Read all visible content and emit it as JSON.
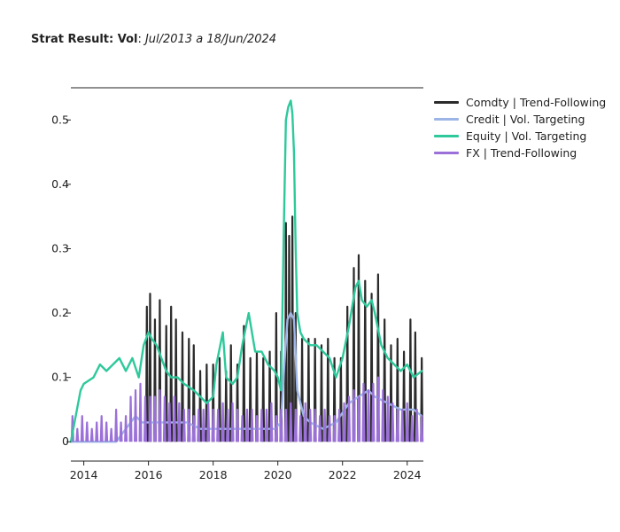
{
  "title": {
    "bold_part": "Strat Result: Vol",
    "separator": ": ",
    "italic_part": "Jul/2013 a 18/Jun/2024"
  },
  "chart_data": {
    "type": "line",
    "xlim": [
      2013.6,
      2024.5
    ],
    "ylim": [
      -0.03,
      0.55
    ],
    "xticks": [
      2014,
      2016,
      2018,
      2020,
      2022,
      2024
    ],
    "xtick_labels": [
      "2014",
      "2016",
      "2018",
      "2020",
      "2022",
      "2024"
    ],
    "yticks": [
      0,
      0.1,
      0.2,
      0.3,
      0.4,
      0.5
    ],
    "ytick_labels": [
      "0",
      "0.1",
      "0.2",
      "0.3",
      "0.4",
      "0.5"
    ],
    "grid": false,
    "legend": "top-right",
    "series": [
      {
        "name": "Comdty | Trend-Following",
        "color": "#2b2b2b",
        "style": "spikes",
        "spike_width": 0.045,
        "x": [
          2015.95,
          2016.05,
          2016.2,
          2016.35,
          2016.55,
          2016.7,
          2016.85,
          2017.05,
          2017.25,
          2017.4,
          2017.6,
          2017.8,
          2018.0,
          2018.2,
          2018.4,
          2018.55,
          2018.75,
          2018.95,
          2019.15,
          2019.35,
          2019.55,
          2019.75,
          2019.95,
          2020.1,
          2020.25,
          2020.35,
          2020.45,
          2020.55,
          2020.75,
          2020.95,
          2021.15,
          2021.35,
          2021.55,
          2021.75,
          2021.95,
          2022.15,
          2022.35,
          2022.5,
          2022.7,
          2022.9,
          2023.1,
          2023.3,
          2023.5,
          2023.7,
          2023.9,
          2024.1,
          2024.25,
          2024.45
        ],
        "values": [
          0.21,
          0.23,
          0.19,
          0.22,
          0.18,
          0.21,
          0.19,
          0.17,
          0.16,
          0.15,
          0.11,
          0.12,
          0.12,
          0.13,
          0.11,
          0.15,
          0.12,
          0.18,
          0.13,
          0.14,
          0.13,
          0.14,
          0.2,
          0.14,
          0.34,
          0.32,
          0.35,
          0.2,
          0.16,
          0.16,
          0.16,
          0.15,
          0.16,
          0.13,
          0.13,
          0.21,
          0.27,
          0.29,
          0.25,
          0.23,
          0.26,
          0.19,
          0.15,
          0.16,
          0.14,
          0.19,
          0.17,
          0.13
        ]
      },
      {
        "name": "Credit | Vol. Targeting",
        "color": "#9cb5e6",
        "style": "line",
        "x": [
          2013.6,
          2014.0,
          2014.5,
          2015.0,
          2015.3,
          2015.6,
          2015.8,
          2016.0,
          2016.4,
          2016.8,
          2017.2,
          2017.6,
          2018.0,
          2018.5,
          2019.0,
          2019.5,
          2019.9,
          2020.1,
          2020.2,
          2020.3,
          2020.4,
          2020.5,
          2020.6,
          2020.8,
          2021.0,
          2021.4,
          2021.8,
          2022.2,
          2022.5,
          2022.8,
          2023.0,
          2023.4,
          2023.8,
          2024.2,
          2024.45
        ],
        "values": [
          0.0,
          0.0,
          0.0,
          0.0,
          0.02,
          0.04,
          0.03,
          0.03,
          0.03,
          0.03,
          0.03,
          0.02,
          0.02,
          0.02,
          0.02,
          0.02,
          0.02,
          0.03,
          0.12,
          0.19,
          0.2,
          0.19,
          0.08,
          0.04,
          0.03,
          0.02,
          0.03,
          0.06,
          0.07,
          0.08,
          0.07,
          0.06,
          0.05,
          0.05,
          0.04
        ]
      },
      {
        "name": "Equity | Vol. Targeting",
        "color": "#2ec99b",
        "style": "line",
        "x": [
          2013.6,
          2013.9,
          2014.0,
          2014.3,
          2014.5,
          2014.7,
          2014.9,
          2015.1,
          2015.3,
          2015.5,
          2015.7,
          2015.85,
          2016.0,
          2016.1,
          2016.25,
          2016.4,
          2016.55,
          2016.7,
          2016.9,
          2017.1,
          2017.4,
          2017.6,
          2017.8,
          2018.0,
          2018.1,
          2018.3,
          2018.4,
          2018.6,
          2018.75,
          2018.9,
          2019.1,
          2019.3,
          2019.5,
          2019.7,
          2019.9,
          2020.0,
          2020.1,
          2020.18,
          2020.25,
          2020.32,
          2020.4,
          2020.45,
          2020.5,
          2020.55,
          2020.6,
          2020.7,
          2020.8,
          2021.0,
          2021.2,
          2021.4,
          2021.6,
          2021.8,
          2022.0,
          2022.2,
          2022.4,
          2022.5,
          2022.6,
          2022.75,
          2022.9,
          2023.0,
          2023.2,
          2023.4,
          2023.6,
          2023.8,
          2024.0,
          2024.2,
          2024.45
        ],
        "values": [
          0.0,
          0.08,
          0.09,
          0.1,
          0.12,
          0.11,
          0.12,
          0.13,
          0.11,
          0.13,
          0.1,
          0.15,
          0.17,
          0.16,
          0.15,
          0.13,
          0.11,
          0.1,
          0.1,
          0.09,
          0.08,
          0.07,
          0.06,
          0.07,
          0.12,
          0.17,
          0.1,
          0.09,
          0.1,
          0.15,
          0.2,
          0.14,
          0.14,
          0.12,
          0.11,
          0.1,
          0.08,
          0.32,
          0.5,
          0.52,
          0.53,
          0.51,
          0.45,
          0.3,
          0.2,
          0.17,
          0.16,
          0.15,
          0.15,
          0.14,
          0.13,
          0.1,
          0.13,
          0.18,
          0.24,
          0.25,
          0.22,
          0.21,
          0.22,
          0.2,
          0.15,
          0.13,
          0.12,
          0.11,
          0.12,
          0.1,
          0.11
        ]
      },
      {
        "name": "FX | Trend-Following",
        "color": "#9b70d8",
        "style": "spikes",
        "spike_width": 0.05,
        "x": [
          2013.65,
          2013.8,
          2013.95,
          2014.1,
          2014.25,
          2014.4,
          2014.55,
          2014.7,
          2014.85,
          2015.0,
          2015.15,
          2015.3,
          2015.45,
          2015.6,
          2015.75,
          2015.9,
          2016.05,
          2016.2,
          2016.35,
          2016.5,
          2016.65,
          2016.8,
          2016.95,
          2017.1,
          2017.25,
          2017.4,
          2017.55,
          2017.7,
          2017.85,
          2018.0,
          2018.15,
          2018.3,
          2018.45,
          2018.6,
          2018.75,
          2018.9,
          2019.05,
          2019.2,
          2019.35,
          2019.5,
          2019.65,
          2019.8,
          2019.95,
          2020.1,
          2020.25,
          2020.4,
          2020.55,
          2020.7,
          2020.85,
          2021.0,
          2021.15,
          2021.3,
          2021.45,
          2021.6,
          2021.75,
          2021.9,
          2022.05,
          2022.2,
          2022.35,
          2022.5,
          2022.65,
          2022.8,
          2022.95,
          2023.1,
          2023.25,
          2023.4,
          2023.55,
          2023.7,
          2023.85,
          2024.0,
          2024.15,
          2024.3,
          2024.45
        ],
        "values": [
          0.04,
          0.02,
          0.04,
          0.03,
          0.02,
          0.03,
          0.04,
          0.03,
          0.02,
          0.05,
          0.03,
          0.04,
          0.07,
          0.08,
          0.09,
          0.07,
          0.07,
          0.07,
          0.08,
          0.07,
          0.06,
          0.07,
          0.06,
          0.05,
          0.05,
          0.04,
          0.05,
          0.05,
          0.06,
          0.05,
          0.05,
          0.06,
          0.05,
          0.06,
          0.05,
          0.04,
          0.05,
          0.05,
          0.04,
          0.05,
          0.05,
          0.06,
          0.04,
          0.05,
          0.05,
          0.06,
          0.05,
          0.04,
          0.06,
          0.05,
          0.05,
          0.04,
          0.05,
          0.04,
          0.04,
          0.05,
          0.06,
          0.07,
          0.08,
          0.07,
          0.09,
          0.08,
          0.09,
          0.1,
          0.08,
          0.07,
          0.06,
          0.05,
          0.05,
          0.06,
          0.04,
          0.05,
          0.04
        ]
      }
    ]
  }
}
